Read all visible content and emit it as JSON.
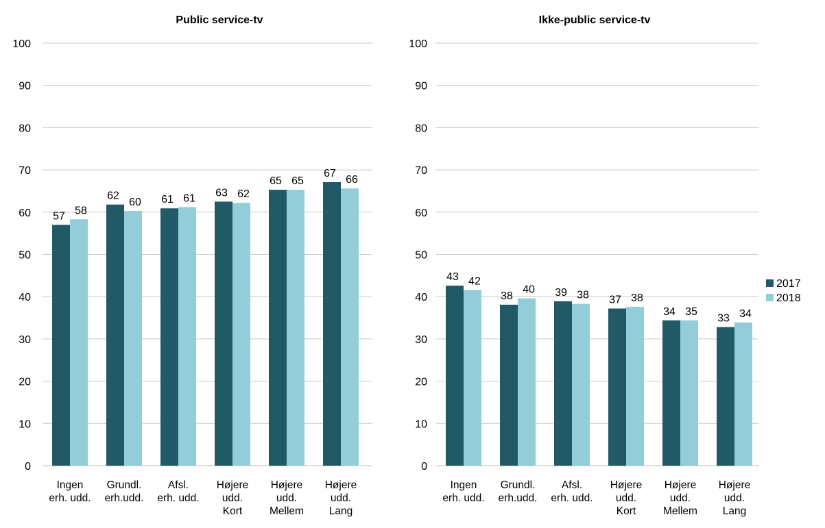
{
  "legend": [
    {
      "label": "2017",
      "color": "#225966"
    },
    {
      "label": "2018",
      "color": "#93cdd9"
    }
  ],
  "chart_data": [
    {
      "type": "bar",
      "title": "Public service-tv",
      "ylim": [
        0,
        100
      ],
      "yticks": [
        0,
        10,
        20,
        30,
        40,
        50,
        60,
        70,
        80,
        90,
        100
      ],
      "grid": true,
      "legend_position": "right",
      "categories": [
        [
          "Ingen",
          "erh. udd."
        ],
        [
          "Grundl.",
          "erh.udd."
        ],
        [
          "Afsl.",
          "erh. udd."
        ],
        [
          "Højere",
          "udd.",
          "Kort"
        ],
        [
          "Højere",
          "udd.",
          "Mellem"
        ],
        [
          "Højere",
          "udd.",
          "Lang"
        ]
      ],
      "series": [
        {
          "name": "2017",
          "color": "#225966",
          "values": [
            57,
            62,
            61,
            63,
            65,
            67
          ],
          "plotted": [
            57.0,
            61.8,
            60.9,
            62.5,
            65.3,
            67.1
          ]
        },
        {
          "name": "2018",
          "color": "#93cdd9",
          "values": [
            58,
            60,
            61,
            62,
            65,
            66
          ],
          "plotted": [
            58.3,
            60.3,
            61.2,
            62.2,
            65.3,
            65.6
          ]
        }
      ]
    },
    {
      "type": "bar",
      "title": "Ikke-public service-tv",
      "ylim": [
        0,
        100
      ],
      "yticks": [
        0,
        10,
        20,
        30,
        40,
        50,
        60,
        70,
        80,
        90,
        100
      ],
      "grid": true,
      "legend_position": "right",
      "categories": [
        [
          "Ingen",
          "erh. udd."
        ],
        [
          "Grundl.",
          "erh.udd."
        ],
        [
          "Afsl.",
          "erh. udd."
        ],
        [
          "Højere",
          "udd.",
          "Kort"
        ],
        [
          "Højere",
          "udd.",
          "Mellem"
        ],
        [
          "Højere",
          "udd.",
          "Lang"
        ]
      ],
      "series": [
        {
          "name": "2017",
          "color": "#225966",
          "values": [
            43,
            38,
            39,
            37,
            34,
            33
          ],
          "plotted": [
            42.6,
            38.1,
            38.9,
            37.2,
            34.4,
            32.8
          ]
        },
        {
          "name": "2018",
          "color": "#93cdd9",
          "values": [
            42,
            40,
            38,
            38,
            35,
            34
          ],
          "plotted": [
            41.6,
            39.6,
            38.3,
            37.6,
            34.4,
            33.9
          ]
        }
      ]
    }
  ]
}
